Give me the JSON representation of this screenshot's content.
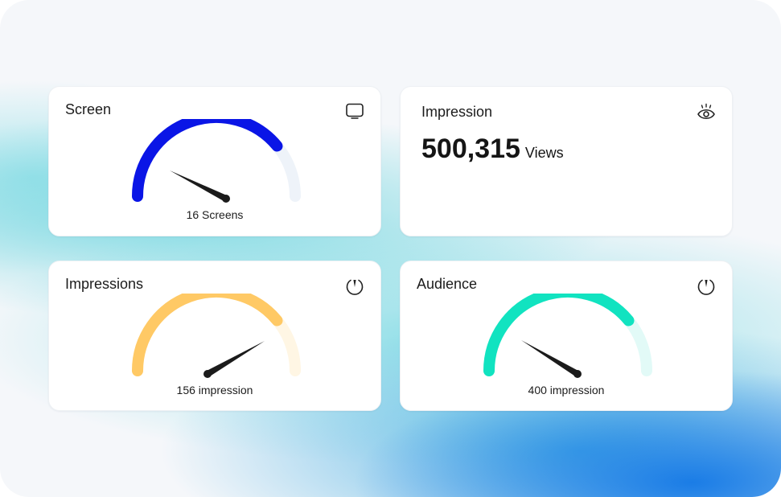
{
  "cards": {
    "screen": {
      "title": "Screen",
      "value_label": "16 Screens",
      "icon": "screen-icon",
      "gauge": {
        "fraction": 0.78,
        "color": "#0a15e6",
        "track_color": "#eef3f9"
      }
    },
    "impression": {
      "title": "Impression",
      "value": "500,315",
      "unit": "Views",
      "icon": "eye-icon"
    },
    "impressions": {
      "title": "Impressions",
      "value_label": "156 impression",
      "icon": "gauge-icon",
      "gauge": {
        "fraction": 0.78,
        "color": "#ffc965",
        "track_color": "#fff6e4"
      }
    },
    "audience": {
      "title": "Audience",
      "value_label": "400 impression",
      "icon": "gauge-icon",
      "gauge": {
        "fraction": 0.78,
        "color": "#11e3c0",
        "track_color": "#e2faf7"
      }
    }
  }
}
